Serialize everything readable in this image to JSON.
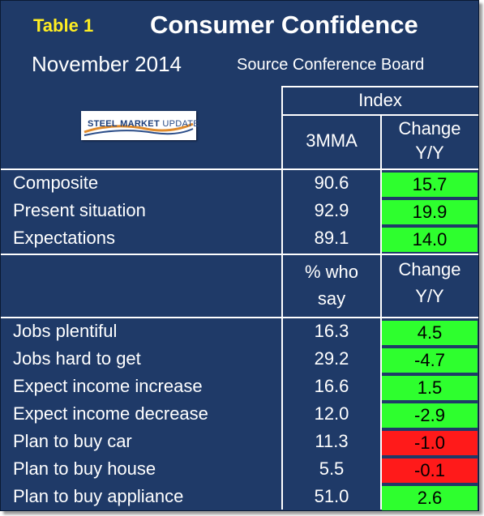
{
  "header": {
    "table_label": "Table 1",
    "title": "Consumer Confidence",
    "subtitle": "November 2014",
    "source": "Source Conference Board"
  },
  "logo": {
    "text_bold": "STEEL MARKET",
    "text_light": "UPDATE"
  },
  "section1": {
    "group_header": "Index",
    "col2_header": "3MMA",
    "col3_header_line1": "Change",
    "col3_header_line2": "Y/Y",
    "rows": [
      {
        "label": "Composite",
        "value": "90.6",
        "change": "15.7",
        "status": "up"
      },
      {
        "label": "Present situation",
        "value": "92.9",
        "change": "19.9",
        "status": "up"
      },
      {
        "label": "Expectations",
        "value": "89.1",
        "change": "14.0",
        "status": "up"
      }
    ]
  },
  "section2": {
    "col2_header_line1": "% who",
    "col2_header_line2": "say",
    "col3_header_line1": "Change",
    "col3_header_line2": "Y/Y",
    "rows": [
      {
        "label": "Jobs plentiful",
        "value": "16.3",
        "change": "4.5",
        "status": "up"
      },
      {
        "label": "Jobs hard to get",
        "value": "29.2",
        "change": "-4.7",
        "status": "up"
      },
      {
        "label": "Expect income increase",
        "value": "16.6",
        "change": "1.5",
        "status": "up"
      },
      {
        "label": "Expect income decrease",
        "value": "12.0",
        "change": "-2.9",
        "status": "up"
      },
      {
        "label": "Plan to buy car",
        "value": "11.3",
        "change": "-1.0",
        "status": "down"
      },
      {
        "label": "Plan to buy house",
        "value": "5.5",
        "change": "-0.1",
        "status": "down"
      },
      {
        "label": "Plan to buy appliance",
        "value": "51.0",
        "change": "2.6",
        "status": "up"
      }
    ]
  },
  "colors": {
    "background": "#1f3a68",
    "title_label": "#ffee22",
    "positive": "#2eff2e",
    "negative": "#ff1a1a",
    "rule": "#ffffff"
  }
}
